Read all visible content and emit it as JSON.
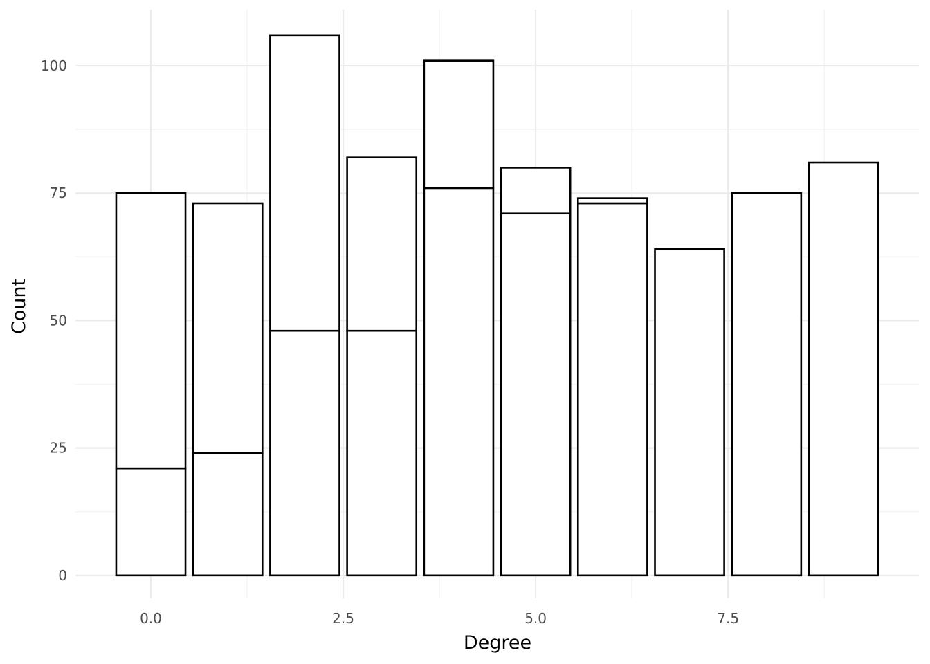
{
  "chart_data": {
    "type": "bar",
    "stacked": true,
    "xlabel": "Degree",
    "ylabel": "Count",
    "x": [
      0,
      1,
      2,
      3,
      4,
      5,
      6,
      7,
      8,
      9
    ],
    "series": [
      {
        "values": [
          21,
          24,
          48,
          48,
          76,
          71,
          73,
          64,
          75,
          81
        ]
      },
      {
        "values": [
          54,
          49,
          58,
          34,
          25,
          9,
          1,
          0,
          0,
          0
        ]
      }
    ],
    "xlim": [
      -0.98,
      9.98
    ],
    "ylim": [
      -4.5,
      111
    ],
    "xticks": [
      0,
      2.5,
      5,
      7.5
    ],
    "xtick_labels": [
      "0.0",
      "2.5",
      "5.0",
      "7.5"
    ],
    "yticks": [
      0,
      25,
      50,
      75,
      100
    ],
    "ytick_labels": [
      "0",
      "25",
      "50",
      "75",
      "100"
    ],
    "grid": true,
    "colors": {
      "bar_fill": "#ffffff",
      "bar_stroke": "#000000",
      "grid_major": "#ebebeb",
      "grid_minor": "#f2f2f2"
    }
  }
}
